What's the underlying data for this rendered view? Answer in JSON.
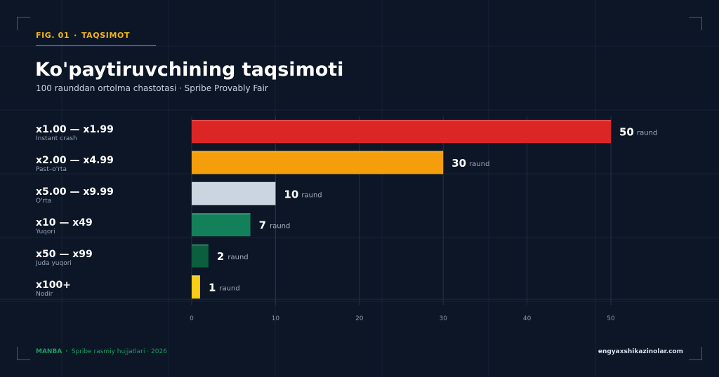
{
  "header": {
    "fig_number": "FIG. 01",
    "fig_separator": "·",
    "fig_section": "TAQSIMOT"
  },
  "chart_data": {
    "type": "bar",
    "orientation": "horizontal",
    "title": "Ko'paytiruvchining taqsimoti",
    "subtitle": "100 raunddan ortolma chastotasi · Spribe Provably Fair",
    "categories": [
      "x1.00 — x1.99",
      "x2.00 — x4.99",
      "x5.00 — x9.99",
      "x10 — x49",
      "x50 — x99",
      "x100+"
    ],
    "category_descriptions": [
      "Instant crash",
      "Past–o'rta",
      "O'rta",
      "Yuqori",
      "Juda yuqori",
      "Nodir"
    ],
    "values": [
      50,
      30,
      10,
      7,
      2,
      1
    ],
    "value_unit": "raund",
    "bar_colors": [
      "#dc2626",
      "#f59e0b",
      "#cbd5e1",
      "#13805a",
      "#0b5f3f",
      "#facc15"
    ],
    "xticks": [
      0,
      10,
      20,
      30,
      40,
      50
    ],
    "xlim": [
      0,
      50
    ],
    "grid": true
  },
  "footer": {
    "source_label": "MANBA",
    "source_separator": "·",
    "source_text": "Spribe rasmiy hujjatlari · 2026",
    "site": "engyaxshikazinolar.com"
  }
}
